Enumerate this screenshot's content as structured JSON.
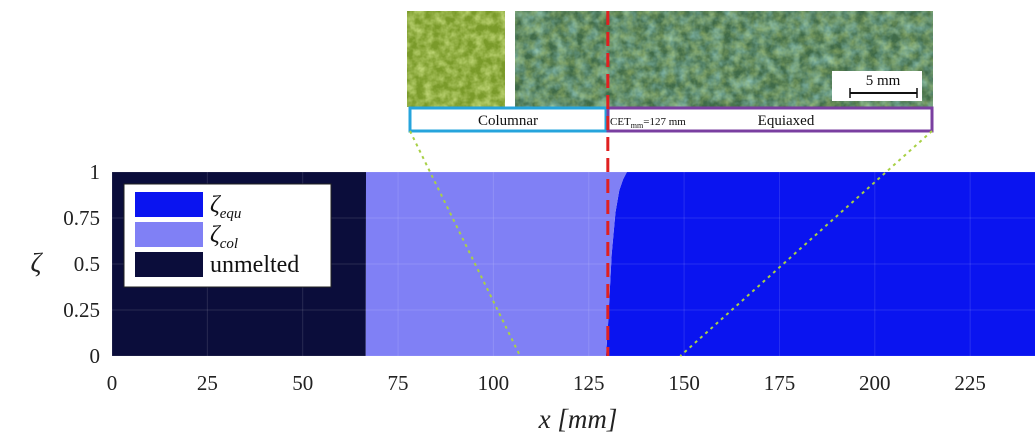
{
  "chart_data": {
    "type": "area",
    "title": "",
    "xlabel": "x [mm]",
    "ylabel": "ζ",
    "xlim": [
      0,
      242
    ],
    "ylim": [
      0,
      1
    ],
    "xticks": [
      "0",
      "25",
      "50",
      "75",
      "100",
      "125",
      "150",
      "175",
      "200",
      "225"
    ],
    "xtick_values": [
      0,
      25,
      50,
      75,
      100,
      125,
      150,
      175,
      200,
      225
    ],
    "yticks": [
      "0",
      "0.25",
      "0.5",
      "0.75",
      "1"
    ],
    "ytick_values": [
      0,
      0.25,
      0.5,
      0.75,
      1
    ],
    "grid": true,
    "legend_position": "top-left",
    "series": [
      {
        "name": "ζ_equ",
        "legend_main": "ζ",
        "legend_sub": "equ",
        "color": "#0a14f0",
        "x": [
          0,
          66.5,
          129.5,
          130,
          131,
          132,
          133,
          134,
          135,
          242
        ],
        "y": [
          0,
          0,
          0,
          0.15,
          0.55,
          0.78,
          0.9,
          0.96,
          1,
          1
        ]
      },
      {
        "name": "ζ_col",
        "legend_main": "ζ",
        "legend_sub": "col",
        "color": "#8080f5",
        "x": [
          0,
          66.5,
          66.6,
          129.5,
          130,
          131,
          132,
          133,
          134,
          135,
          242
        ],
        "y": [
          0,
          0,
          1,
          1,
          0.85,
          0.45,
          0.22,
          0.1,
          0.04,
          0,
          0
        ]
      },
      {
        "name": "unmelted",
        "legend_main": "unmelted",
        "legend_sub": "",
        "color": "#0b0d3b",
        "x": [
          0,
          66.5,
          66.6,
          242
        ],
        "y": [
          1,
          1,
          0,
          0
        ]
      }
    ],
    "annotations": {
      "cet_line_x": 130,
      "cet_line_color": "#e02020",
      "zoom_line_color": "#a8d046",
      "columnar_label": "Columnar",
      "columnar_color": "#26a4dc",
      "equiaxed_label": "Equiaxed",
      "equiaxed_color": "#7a3fa0",
      "cet_label_main": "CET",
      "cet_label_sub": "mm",
      "cet_label_value": "=127 mm",
      "scale_bar_label": "5 mm"
    }
  }
}
